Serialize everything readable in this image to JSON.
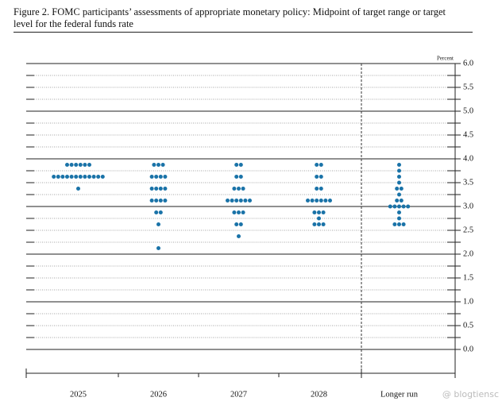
{
  "chart_data": {
    "type": "dot_plot",
    "title": "Figure 2. FOMC participants’ assessments of appropriate monetary policy: Midpoint of target range or target level for the federal funds rate",
    "y_label": "Percent",
    "watermark": "@ blogtiensc",
    "color": "#1a73a8",
    "categories": [
      "2025",
      "2026",
      "2027",
      "2028",
      "Longer run"
    ],
    "dots": [
      [
        {
          "rate": 3.875,
          "count": 6
        },
        {
          "rate": 3.625,
          "count": 12
        },
        {
          "rate": 3.375,
          "count": 1
        }
      ],
      [
        {
          "rate": 3.875,
          "count": 3
        },
        {
          "rate": 3.625,
          "count": 4
        },
        {
          "rate": 3.375,
          "count": 4
        },
        {
          "rate": 3.125,
          "count": 4
        },
        {
          "rate": 2.875,
          "count": 2
        },
        {
          "rate": 2.625,
          "count": 1
        },
        {
          "rate": 2.125,
          "count": 1
        }
      ],
      [
        {
          "rate": 3.875,
          "count": 2
        },
        {
          "rate": 3.625,
          "count": 2
        },
        {
          "rate": 3.375,
          "count": 3
        },
        {
          "rate": 3.125,
          "count": 6
        },
        {
          "rate": 2.875,
          "count": 3
        },
        {
          "rate": 2.625,
          "count": 2
        },
        {
          "rate": 2.375,
          "count": 1
        }
      ],
      [
        {
          "rate": 3.875,
          "count": 2
        },
        {
          "rate": 3.625,
          "count": 2
        },
        {
          "rate": 3.375,
          "count": 2
        },
        {
          "rate": 3.125,
          "count": 6
        },
        {
          "rate": 2.875,
          "count": 3
        },
        {
          "rate": 2.75,
          "count": 1
        },
        {
          "rate": 2.625,
          "count": 3
        }
      ],
      [
        {
          "rate": 3.875,
          "count": 1
        },
        {
          "rate": 3.75,
          "count": 1
        },
        {
          "rate": 3.625,
          "count": 1
        },
        {
          "rate": 3.5,
          "count": 1
        },
        {
          "rate": 3.375,
          "count": 2
        },
        {
          "rate": 3.25,
          "count": 1
        },
        {
          "rate": 3.125,
          "count": 2
        },
        {
          "rate": 3.0,
          "count": 5
        },
        {
          "rate": 2.875,
          "count": 1
        },
        {
          "rate": 2.75,
          "count": 1
        },
        {
          "rate": 2.625,
          "count": 3
        }
      ]
    ],
    "ylim": [
      -0.5,
      6
    ],
    "yticks": [
      {
        "value": 6,
        "label": "6.0"
      },
      5.5,
      {
        "value": 5,
        "label": "5.0"
      },
      4.5,
      {
        "value": 4,
        "label": "4.0"
      },
      3.5,
      {
        "value": 3,
        "label": "3.0"
      },
      2.5,
      {
        "value": 2,
        "label": "2.0"
      },
      1.5,
      {
        "value": 1,
        "label": "1.0"
      },
      0.5,
      {
        "value": 0,
        "label": "0.0"
      }
    ],
    "minor_yticks": [
      5.75,
      5.25,
      4.75,
      4.25,
      3.75,
      3.25,
      2.75,
      2.25,
      1.75,
      1.25,
      0.75,
      0.25
    ],
    "grid": true
  }
}
